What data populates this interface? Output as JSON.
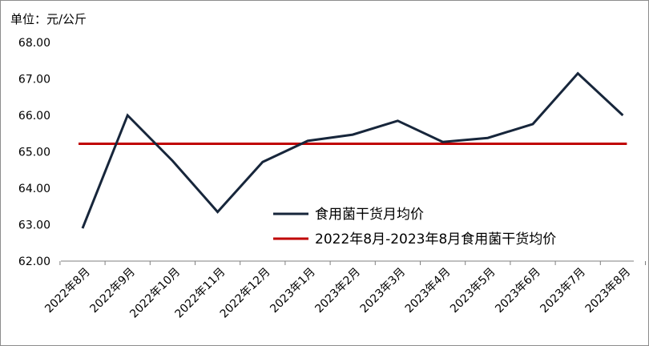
{
  "chart_data": {
    "type": "line",
    "title": "",
    "unit_label": "单位：元/公斤",
    "xlabel": "",
    "ylabel": "",
    "ylim": [
      62,
      68
    ],
    "y_ticks": [
      "62.00",
      "63.00",
      "64.00",
      "65.00",
      "66.00",
      "67.00",
      "68.00"
    ],
    "grid": false,
    "legend_position": "center-right",
    "categories": [
      "2022年8月",
      "2022年9月",
      "2022年10月",
      "2022年11月",
      "2022年12月",
      "2023年1月",
      "2023年2月",
      "2023年3月",
      "2023年4月",
      "2023年5月",
      "2023年6月",
      "2023年7月",
      "2023年8月"
    ],
    "series": [
      {
        "name": "食用菌干货月均价",
        "color": "#17263b",
        "values": [
          62.9,
          66.0,
          64.75,
          63.35,
          64.72,
          65.3,
          65.47,
          65.85,
          65.27,
          65.38,
          65.76,
          67.15,
          66.0
        ]
      },
      {
        "name": "2022年8月-2023年8月食用菌干货均价",
        "color": "#c00000",
        "values": [
          65.22,
          65.22,
          65.22,
          65.22,
          65.22,
          65.22,
          65.22,
          65.22,
          65.22,
          65.22,
          65.22,
          65.22,
          65.22
        ]
      }
    ]
  }
}
